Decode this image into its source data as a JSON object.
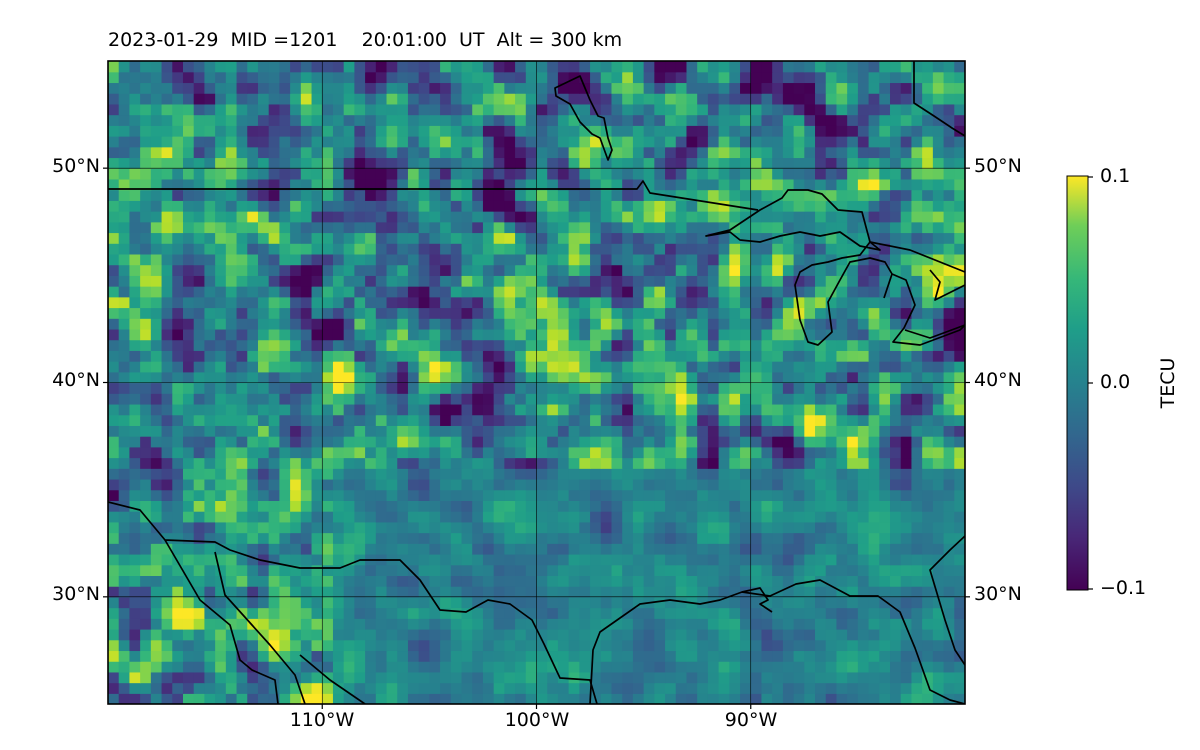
{
  "map": {
    "title": "2023-01-29  MID =1201    20:01:00  UT  Alt = 300 km",
    "extent": {
      "lon": [
        -120,
        -80
      ],
      "lat": [
        25,
        55
      ]
    },
    "gridlines": {
      "lats": [
        30,
        40,
        50
      ],
      "lons": [
        -110,
        -100,
        -90
      ],
      "lat_labels": [
        "30°N",
        "40°N",
        "50°N"
      ],
      "lon_labels": [
        "110°W",
        "100°W",
        "90°W"
      ]
    },
    "field_resolution_deg": 0.5
  },
  "colorbar": {
    "label": "TECU",
    "ticks": [
      "0.1",
      "0.0",
      "−0.1"
    ],
    "colormap": "viridis",
    "range": [
      -0.1,
      0.1
    ]
  }
}
